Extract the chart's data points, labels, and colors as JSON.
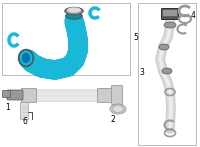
{
  "bg_color": "#ffffff",
  "border_color": "#bbbbbb",
  "tube_color": "#1ab8d8",
  "tube_dark": "#0e8fa8",
  "gray_part": "#999999",
  "dark_part": "#555555",
  "light_gray": "#cccccc",
  "silver": "#dddddd",
  "figsize": [
    2.0,
    1.47
  ],
  "dpi": 100
}
